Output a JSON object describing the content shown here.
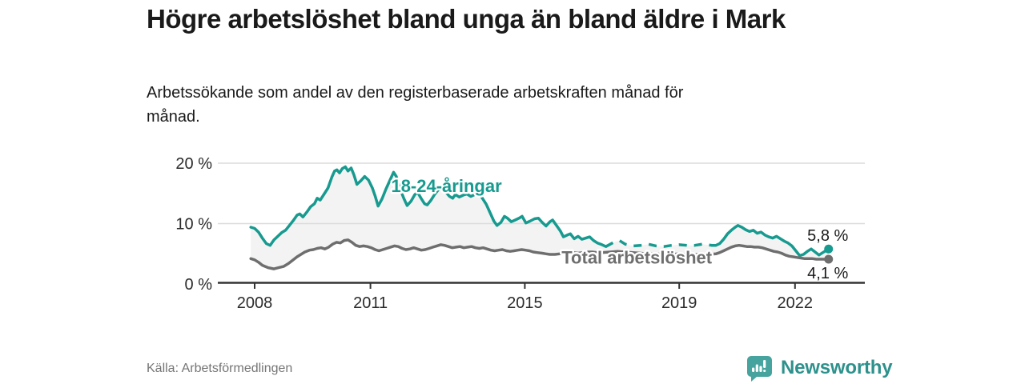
{
  "header": {
    "title": "Högre arbetslöshet bland unga än bland äldre i Mark",
    "subtitle": "Arbetssökande som andel av den registerbaserade arbetskraften månad för månad."
  },
  "footer": {
    "source": "Källa: Arbetsförmedlingen",
    "brand": "Newsworthy"
  },
  "colors": {
    "accent_teal": "#179a8f",
    "neutral_gray": "#6e6e6e",
    "logo_icon": "#46a39d",
    "logo_text": "#2e918c"
  },
  "chart_data": {
    "type": "line",
    "title": "Högre arbetslöshet bland unga än bland äldre i Mark",
    "subtitle": "Arbetssökande som andel av den registerbaserade arbetskraften månad för månad.",
    "source": "Källa: Arbetsförmedlingen",
    "fill_between_color": "#f3f3f3",
    "style": {
      "grid_color": "#dcdcdc",
      "axis_color": "#333333",
      "tick_label_color": "#2b2b2b",
      "value_label_color": "#1a1a1a"
    },
    "x_axis": {
      "unit": "year",
      "range": [
        2007.85,
        2023.3
      ],
      "ticks": [
        {
          "t": 2008,
          "label": "2008"
        },
        {
          "t": 2011,
          "label": "2011"
        },
        {
          "t": 2015,
          "label": "2015"
        },
        {
          "t": 2019,
          "label": "2019"
        },
        {
          "t": 2022,
          "label": "2022"
        }
      ]
    },
    "y_axis": {
      "unit": "percent",
      "range": [
        0,
        21
      ],
      "grid": true,
      "ticks": [
        {
          "v": 0,
          "label": "0 %"
        },
        {
          "v": 10,
          "label": "10 %"
        },
        {
          "v": 20,
          "label": "20 %"
        }
      ]
    },
    "series": [
      {
        "id": "youth",
        "name": "18-24-åringar",
        "color": "#179a8f",
        "line_label": {
          "text": "18-24-åringar",
          "t": 2012.97,
          "v": 15.2
        },
        "end_label": {
          "text": "5,8 %",
          "position": "above"
        },
        "end_value": 5.8,
        "segments": [
          {
            "from": 2007.9,
            "to": 2017.1,
            "style": "solid"
          },
          {
            "from": 2017.1,
            "to": 2019.85,
            "style": "dashed"
          },
          {
            "from": 2019.85,
            "to": 2022.87,
            "style": "solid"
          }
        ],
        "points": [
          [
            2007.9,
            9.4
          ],
          [
            2008.0,
            9.2
          ],
          [
            2008.1,
            8.6
          ],
          [
            2008.2,
            7.6
          ],
          [
            2008.3,
            6.7
          ],
          [
            2008.4,
            6.4
          ],
          [
            2008.5,
            7.3
          ],
          [
            2008.6,
            7.9
          ],
          [
            2008.7,
            8.5
          ],
          [
            2008.8,
            8.9
          ],
          [
            2008.9,
            9.7
          ],
          [
            2009.0,
            10.5
          ],
          [
            2009.1,
            11.4
          ],
          [
            2009.17,
            11.6
          ],
          [
            2009.25,
            11.1
          ],
          [
            2009.35,
            11.9
          ],
          [
            2009.45,
            12.8
          ],
          [
            2009.55,
            13.3
          ],
          [
            2009.62,
            14.2
          ],
          [
            2009.7,
            13.9
          ],
          [
            2009.8,
            14.9
          ],
          [
            2009.9,
            15.9
          ],
          [
            2010.0,
            17.7
          ],
          [
            2010.07,
            18.7
          ],
          [
            2010.13,
            18.9
          ],
          [
            2010.2,
            18.4
          ],
          [
            2010.27,
            19.1
          ],
          [
            2010.35,
            19.4
          ],
          [
            2010.42,
            18.7
          ],
          [
            2010.5,
            19.2
          ],
          [
            2010.57,
            18.1
          ],
          [
            2010.65,
            16.5
          ],
          [
            2010.75,
            17.1
          ],
          [
            2010.85,
            17.8
          ],
          [
            2010.95,
            17.2
          ],
          [
            2011.05,
            15.9
          ],
          [
            2011.12,
            14.6
          ],
          [
            2011.2,
            12.9
          ],
          [
            2011.3,
            14.1
          ],
          [
            2011.4,
            15.7
          ],
          [
            2011.5,
            17.1
          ],
          [
            2011.6,
            18.5
          ],
          [
            2011.67,
            17.8
          ],
          [
            2011.77,
            15.7
          ],
          [
            2011.87,
            14.1
          ],
          [
            2011.95,
            13.0
          ],
          [
            2012.05,
            13.7
          ],
          [
            2012.15,
            14.8
          ],
          [
            2012.22,
            15.2
          ],
          [
            2012.3,
            14.3
          ],
          [
            2012.4,
            13.3
          ],
          [
            2012.47,
            13.1
          ],
          [
            2012.57,
            13.9
          ],
          [
            2012.67,
            14.9
          ],
          [
            2012.77,
            15.7
          ],
          [
            2012.85,
            16.0
          ],
          [
            2012.95,
            15.2
          ],
          [
            2013.05,
            14.5
          ],
          [
            2013.13,
            14.2
          ],
          [
            2013.2,
            14.8
          ],
          [
            2013.3,
            14.4
          ],
          [
            2013.4,
            14.7
          ],
          [
            2013.5,
            14.9
          ],
          [
            2013.6,
            14.5
          ],
          [
            2013.7,
            14.8
          ],
          [
            2013.8,
            15.0
          ],
          [
            2013.88,
            14.4
          ],
          [
            2014.0,
            13.2
          ],
          [
            2014.1,
            11.8
          ],
          [
            2014.2,
            10.4
          ],
          [
            2014.28,
            9.7
          ],
          [
            2014.38,
            10.2
          ],
          [
            2014.47,
            11.2
          ],
          [
            2014.55,
            10.9
          ],
          [
            2014.65,
            10.3
          ],
          [
            2014.75,
            10.6
          ],
          [
            2014.85,
            10.9
          ],
          [
            2014.93,
            11.2
          ],
          [
            2015.03,
            10.1
          ],
          [
            2015.13,
            10.4
          ],
          [
            2015.25,
            10.8
          ],
          [
            2015.35,
            10.9
          ],
          [
            2015.45,
            10.2
          ],
          [
            2015.55,
            9.6
          ],
          [
            2015.65,
            10.3
          ],
          [
            2015.72,
            10.6
          ],
          [
            2015.82,
            9.7
          ],
          [
            2015.92,
            8.8
          ],
          [
            2016.0,
            7.8
          ],
          [
            2016.1,
            8.1
          ],
          [
            2016.18,
            8.3
          ],
          [
            2016.28,
            7.5
          ],
          [
            2016.38,
            7.9
          ],
          [
            2016.48,
            7.4
          ],
          [
            2016.58,
            7.6
          ],
          [
            2016.68,
            7.8
          ],
          [
            2016.78,
            7.2
          ],
          [
            2016.88,
            6.8
          ],
          [
            2017.0,
            6.5
          ],
          [
            2017.1,
            6.2
          ],
          [
            2017.3,
            6.9
          ],
          [
            2017.45,
            7.2
          ],
          [
            2017.6,
            6.6
          ],
          [
            2017.8,
            6.3
          ],
          [
            2018.0,
            6.4
          ],
          [
            2018.2,
            6.6
          ],
          [
            2018.4,
            6.3
          ],
          [
            2018.6,
            6.2
          ],
          [
            2018.8,
            6.4
          ],
          [
            2019.0,
            6.5
          ],
          [
            2019.2,
            6.4
          ],
          [
            2019.4,
            6.4
          ],
          [
            2019.6,
            6.6
          ],
          [
            2019.85,
            6.4
          ],
          [
            2019.95,
            6.4
          ],
          [
            2020.05,
            6.7
          ],
          [
            2020.15,
            7.4
          ],
          [
            2020.25,
            8.3
          ],
          [
            2020.35,
            8.9
          ],
          [
            2020.45,
            9.4
          ],
          [
            2020.52,
            9.7
          ],
          [
            2020.62,
            9.4
          ],
          [
            2020.72,
            9.0
          ],
          [
            2020.82,
            8.7
          ],
          [
            2020.92,
            8.9
          ],
          [
            2021.02,
            8.4
          ],
          [
            2021.12,
            8.6
          ],
          [
            2021.22,
            8.1
          ],
          [
            2021.32,
            7.8
          ],
          [
            2021.42,
            7.6
          ],
          [
            2021.52,
            7.9
          ],
          [
            2021.62,
            7.5
          ],
          [
            2021.72,
            7.1
          ],
          [
            2021.82,
            6.8
          ],
          [
            2021.92,
            6.3
          ],
          [
            2022.02,
            5.5
          ],
          [
            2022.12,
            4.7
          ],
          [
            2022.22,
            4.9
          ],
          [
            2022.32,
            5.4
          ],
          [
            2022.42,
            5.8
          ],
          [
            2022.52,
            5.3
          ],
          [
            2022.62,
            4.8
          ],
          [
            2022.72,
            5.2
          ],
          [
            2022.87,
            5.8
          ]
        ]
      },
      {
        "id": "total",
        "name": "Total arbetslöshet",
        "color": "#6e6e6e",
        "line_label": {
          "text": "Total arbetslöshet",
          "t": 2017.9,
          "v": 3.4
        },
        "end_label": {
          "text": "4,1 %",
          "position": "below"
        },
        "end_value": 4.1,
        "segments": [
          {
            "from": 2007.9,
            "to": 2022.87,
            "style": "solid"
          }
        ],
        "points": [
          [
            2007.9,
            4.2
          ],
          [
            2008.0,
            4.0
          ],
          [
            2008.1,
            3.6
          ],
          [
            2008.2,
            3.1
          ],
          [
            2008.35,
            2.7
          ],
          [
            2008.5,
            2.5
          ],
          [
            2008.62,
            2.7
          ],
          [
            2008.75,
            2.9
          ],
          [
            2008.88,
            3.4
          ],
          [
            2009.0,
            4.0
          ],
          [
            2009.1,
            4.5
          ],
          [
            2009.2,
            4.9
          ],
          [
            2009.3,
            5.3
          ],
          [
            2009.42,
            5.6
          ],
          [
            2009.52,
            5.7
          ],
          [
            2009.62,
            5.9
          ],
          [
            2009.72,
            6.0
          ],
          [
            2009.82,
            5.8
          ],
          [
            2009.92,
            6.1
          ],
          [
            2010.02,
            6.6
          ],
          [
            2010.12,
            6.9
          ],
          [
            2010.22,
            6.8
          ],
          [
            2010.32,
            7.2
          ],
          [
            2010.42,
            7.3
          ],
          [
            2010.52,
            6.9
          ],
          [
            2010.62,
            6.4
          ],
          [
            2010.72,
            6.2
          ],
          [
            2010.82,
            6.3
          ],
          [
            2010.92,
            6.2
          ],
          [
            2011.02,
            6.0
          ],
          [
            2011.12,
            5.7
          ],
          [
            2011.22,
            5.5
          ],
          [
            2011.32,
            5.7
          ],
          [
            2011.42,
            5.9
          ],
          [
            2011.52,
            6.1
          ],
          [
            2011.62,
            6.3
          ],
          [
            2011.72,
            6.2
          ],
          [
            2011.82,
            5.9
          ],
          [
            2011.92,
            5.7
          ],
          [
            2012.02,
            5.8
          ],
          [
            2012.12,
            6.0
          ],
          [
            2012.22,
            5.8
          ],
          [
            2012.32,
            5.6
          ],
          [
            2012.42,
            5.7
          ],
          [
            2012.52,
            5.9
          ],
          [
            2012.62,
            6.1
          ],
          [
            2012.72,
            6.3
          ],
          [
            2012.82,
            6.5
          ],
          [
            2012.92,
            6.4
          ],
          [
            2013.02,
            6.2
          ],
          [
            2013.12,
            6.0
          ],
          [
            2013.22,
            6.1
          ],
          [
            2013.32,
            6.2
          ],
          [
            2013.42,
            6.0
          ],
          [
            2013.52,
            6.1
          ],
          [
            2013.62,
            6.2
          ],
          [
            2013.72,
            6.0
          ],
          [
            2013.82,
            5.9
          ],
          [
            2013.92,
            6.0
          ],
          [
            2014.02,
            5.8
          ],
          [
            2014.12,
            5.6
          ],
          [
            2014.22,
            5.5
          ],
          [
            2014.32,
            5.6
          ],
          [
            2014.42,
            5.7
          ],
          [
            2014.52,
            5.5
          ],
          [
            2014.62,
            5.4
          ],
          [
            2014.72,
            5.5
          ],
          [
            2014.82,
            5.6
          ],
          [
            2014.92,
            5.7
          ],
          [
            2015.02,
            5.6
          ],
          [
            2015.12,
            5.5
          ],
          [
            2015.22,
            5.3
          ],
          [
            2015.32,
            5.2
          ],
          [
            2015.45,
            5.1
          ],
          [
            2015.55,
            5.0
          ],
          [
            2015.65,
            4.9
          ],
          [
            2015.78,
            4.9
          ],
          [
            2015.9,
            5.0
          ],
          [
            2016.02,
            5.1
          ],
          [
            2016.12,
            5.2
          ],
          [
            2016.25,
            5.2
          ],
          [
            2016.38,
            5.1
          ],
          [
            2016.5,
            5.2
          ],
          [
            2016.62,
            5.3
          ],
          [
            2016.75,
            5.3
          ],
          [
            2016.88,
            5.2
          ],
          [
            2017.0,
            5.2
          ],
          [
            2017.2,
            5.3
          ],
          [
            2017.4,
            5.4
          ],
          [
            2017.6,
            5.3
          ],
          [
            2017.8,
            5.2
          ],
          [
            2018.0,
            5.1
          ],
          [
            2018.2,
            5.0
          ],
          [
            2018.4,
            5.0
          ],
          [
            2018.6,
            4.9
          ],
          [
            2018.8,
            4.9
          ],
          [
            2019.0,
            5.0
          ],
          [
            2019.2,
            4.9
          ],
          [
            2019.4,
            4.9
          ],
          [
            2019.6,
            4.9
          ],
          [
            2019.8,
            4.9
          ],
          [
            2019.95,
            5.0
          ],
          [
            2020.05,
            5.2
          ],
          [
            2020.15,
            5.5
          ],
          [
            2020.25,
            5.8
          ],
          [
            2020.35,
            6.1
          ],
          [
            2020.45,
            6.3
          ],
          [
            2020.55,
            6.4
          ],
          [
            2020.65,
            6.3
          ],
          [
            2020.75,
            6.2
          ],
          [
            2020.85,
            6.2
          ],
          [
            2020.95,
            6.1
          ],
          [
            2021.05,
            6.1
          ],
          [
            2021.15,
            6.0
          ],
          [
            2021.25,
            5.8
          ],
          [
            2021.35,
            5.6
          ],
          [
            2021.45,
            5.4
          ],
          [
            2021.55,
            5.3
          ],
          [
            2021.65,
            5.1
          ],
          [
            2021.75,
            4.8
          ],
          [
            2021.85,
            4.6
          ],
          [
            2021.95,
            4.5
          ],
          [
            2022.05,
            4.4
          ],
          [
            2022.15,
            4.3
          ],
          [
            2022.25,
            4.2
          ],
          [
            2022.35,
            4.2
          ],
          [
            2022.45,
            4.2
          ],
          [
            2022.55,
            4.1
          ],
          [
            2022.65,
            4.1
          ],
          [
            2022.75,
            4.1
          ],
          [
            2022.87,
            4.1
          ]
        ]
      }
    ]
  }
}
